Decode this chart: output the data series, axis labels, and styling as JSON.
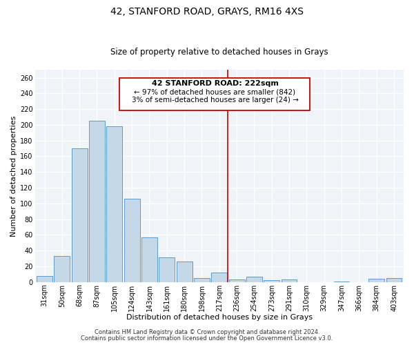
{
  "title": "42, STANFORD ROAD, GRAYS, RM16 4XS",
  "subtitle": "Size of property relative to detached houses in Grays",
  "xlabel": "Distribution of detached houses by size in Grays",
  "ylabel": "Number of detached properties",
  "bar_labels": [
    "31sqm",
    "50sqm",
    "68sqm",
    "87sqm",
    "105sqm",
    "124sqm",
    "143sqm",
    "161sqm",
    "180sqm",
    "198sqm",
    "217sqm",
    "236sqm",
    "254sqm",
    "273sqm",
    "291sqm",
    "310sqm",
    "329sqm",
    "347sqm",
    "366sqm",
    "384sqm",
    "403sqm"
  ],
  "bar_values": [
    8,
    33,
    170,
    205,
    198,
    106,
    57,
    31,
    26,
    5,
    12,
    3,
    7,
    2,
    3,
    0,
    0,
    1,
    0,
    4,
    5
  ],
  "bar_color": "#c5d8e8",
  "bar_edge_color": "#5b9bd5",
  "vline_x": 10.5,
  "vline_color": "#cc0000",
  "ylim": [
    0,
    270
  ],
  "yticks": [
    0,
    20,
    40,
    60,
    80,
    100,
    120,
    140,
    160,
    180,
    200,
    220,
    240,
    260
  ],
  "annotation_title": "42 STANFORD ROAD: 222sqm",
  "annotation_line1": "← 97% of detached houses are smaller (842)",
  "annotation_line2": "3% of semi-detached houses are larger (24) →",
  "annotation_box_color": "#cc0000",
  "footer1": "Contains HM Land Registry data © Crown copyright and database right 2024.",
  "footer2": "Contains public sector information licensed under the Open Government Licence v3.0.",
  "bg_color": "#ffffff",
  "plot_bg_color": "#f0f4f8",
  "grid_color": "#ffffff",
  "title_fontsize": 10,
  "subtitle_fontsize": 8.5,
  "xlabel_fontsize": 8,
  "ylabel_fontsize": 8,
  "tick_fontsize": 7,
  "footer_fontsize": 6,
  "ann_title_fontsize": 8,
  "ann_line_fontsize": 7.5
}
